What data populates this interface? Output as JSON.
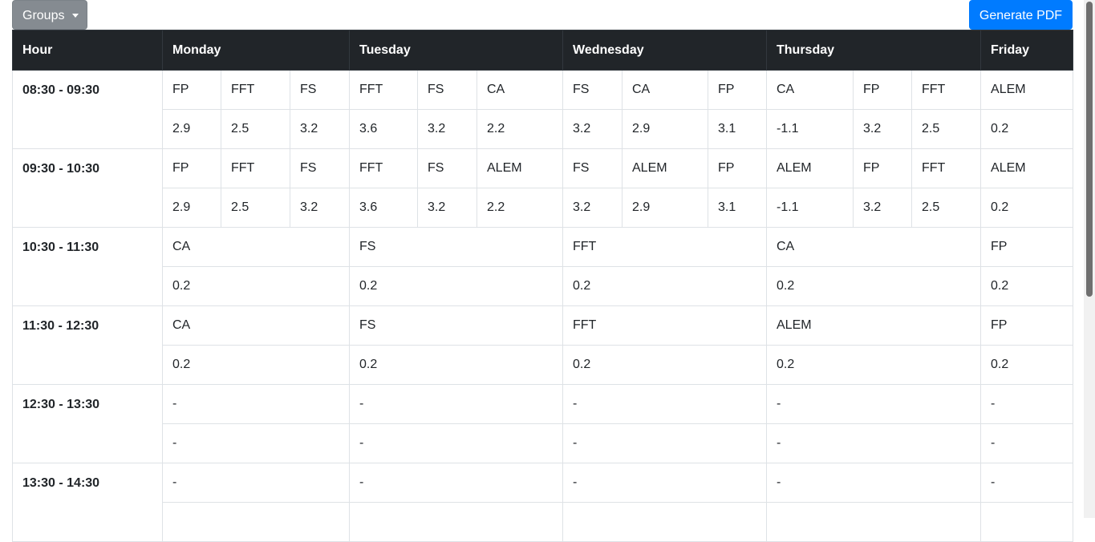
{
  "toolbar": {
    "groups_label": "Groups",
    "pdf_label": "Generate PDF"
  },
  "table": {
    "headers": {
      "hour": "Hour",
      "monday": "Monday",
      "tuesday": "Tuesday",
      "wednesday": "Wednesday",
      "thursday": "Thursday",
      "friday": "Friday"
    },
    "rows": [
      {
        "hour": "08:30 - 09:30",
        "subjects": [
          "FP",
          "FFT",
          "FS",
          "FFT",
          "FS",
          "CA",
          "FS",
          "CA",
          "FP",
          "CA",
          "FP",
          "FFT",
          "ALEM"
        ],
        "values": [
          "2.9",
          "2.5",
          "3.2",
          "3.6",
          "3.2",
          "2.2",
          "3.2",
          "2.9",
          "3.1",
          "-1.1",
          "3.2",
          "2.5",
          "0.2"
        ]
      },
      {
        "hour": "09:30 - 10:30",
        "subjects": [
          "FP",
          "FFT",
          "FS",
          "FFT",
          "FS",
          "ALEM",
          "FS",
          "ALEM",
          "FP",
          "ALEM",
          "FP",
          "FFT",
          "ALEM"
        ],
        "values": [
          "2.9",
          "2.5",
          "3.2",
          "3.6",
          "3.2",
          "2.2",
          "3.2",
          "2.9",
          "3.1",
          "-1.1",
          "3.2",
          "2.5",
          "0.2"
        ]
      },
      {
        "hour": "10:30 - 11:30",
        "subjects": [
          "CA",
          "FS",
          "FFT",
          "CA",
          "FP"
        ],
        "values": [
          "0.2",
          "0.2",
          "0.2",
          "0.2",
          "0.2"
        ]
      },
      {
        "hour": "11:30 - 12:30",
        "subjects": [
          "CA",
          "FS",
          "FFT",
          "ALEM",
          "FP"
        ],
        "values": [
          "0.2",
          "0.2",
          "0.2",
          "0.2",
          "0.2"
        ]
      },
      {
        "hour": "12:30 - 13:30",
        "subjects": [
          "-",
          "-",
          "-",
          "-",
          "-"
        ],
        "values": [
          "-",
          "-",
          "-",
          "-",
          "-"
        ]
      },
      {
        "hour": "13:30 - 14:30",
        "subjects": [
          "-",
          "-",
          "-",
          "-",
          "-"
        ],
        "values": [
          "",
          "",
          "",
          "",
          ""
        ]
      }
    ]
  }
}
